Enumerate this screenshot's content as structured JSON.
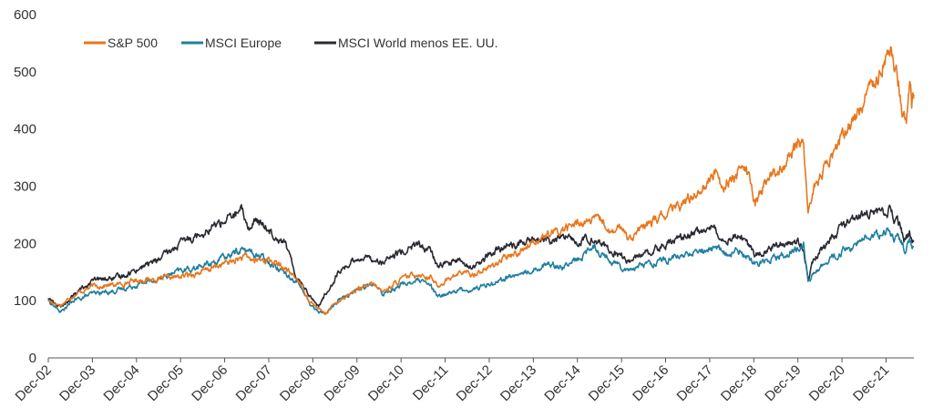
{
  "chart_data": {
    "type": "line",
    "title": "",
    "xlabel": "",
    "ylabel": "",
    "ylim": [
      0,
      600
    ],
    "yticks": [
      0,
      100,
      200,
      300,
      400,
      500,
      600
    ],
    "xlim": [
      2002.92,
      2022.55
    ],
    "xticks": [
      {
        "label": "Dec-02",
        "x": 2002.92
      },
      {
        "label": "Dec-03",
        "x": 2003.92
      },
      {
        "label": "Dec-04",
        "x": 2004.92
      },
      {
        "label": "Dec-05",
        "x": 2005.92
      },
      {
        "label": "Dec-06",
        "x": 2006.92
      },
      {
        "label": "Dec-07",
        "x": 2007.92
      },
      {
        "label": "Dec-08",
        "x": 2008.92
      },
      {
        "label": "Dec-09",
        "x": 2009.92
      },
      {
        "label": "Dec-10",
        "x": 2010.92
      },
      {
        "label": "Dec-11",
        "x": 2011.92
      },
      {
        "label": "Dec-12",
        "x": 2012.92
      },
      {
        "label": "Dec-13",
        "x": 2013.92
      },
      {
        "label": "Dec-14",
        "x": 2014.92
      },
      {
        "label": "Dec-15",
        "x": 2015.92
      },
      {
        "label": "Dec-16",
        "x": 2016.92
      },
      {
        "label": "Dec-17",
        "x": 2017.92
      },
      {
        "label": "Dec-18",
        "x": 2018.92
      },
      {
        "label": "Dec-19",
        "x": 2019.92
      },
      {
        "label": "Dec-20",
        "x": 2020.92
      },
      {
        "label": "Dec-21",
        "x": 2021.92
      }
    ],
    "grid": false,
    "legend_position": "top-left",
    "series": [
      {
        "name": "S&P 500",
        "color": "#e8761c",
        "points": [
          [
            2002.92,
            100
          ],
          [
            2003.2,
            92
          ],
          [
            2003.5,
            110
          ],
          [
            2003.92,
            125
          ],
          [
            2004.5,
            128
          ],
          [
            2004.92,
            136
          ],
          [
            2005.5,
            138
          ],
          [
            2005.92,
            142
          ],
          [
            2006.4,
            150
          ],
          [
            2006.92,
            165
          ],
          [
            2007.4,
            176
          ],
          [
            2007.6,
            170
          ],
          [
            2007.92,
            172
          ],
          [
            2008.3,
            155
          ],
          [
            2008.6,
            135
          ],
          [
            2008.85,
            100
          ],
          [
            2009.05,
            85
          ],
          [
            2009.2,
            78
          ],
          [
            2009.5,
            100
          ],
          [
            2009.92,
            120
          ],
          [
            2010.3,
            128
          ],
          [
            2010.5,
            115
          ],
          [
            2010.92,
            137
          ],
          [
            2011.3,
            148
          ],
          [
            2011.6,
            140
          ],
          [
            2011.75,
            125
          ],
          [
            2011.92,
            135
          ],
          [
            2012.3,
            150
          ],
          [
            2012.5,
            145
          ],
          [
            2012.92,
            158
          ],
          [
            2013.3,
            175
          ],
          [
            2013.6,
            185
          ],
          [
            2013.92,
            205
          ],
          [
            2014.3,
            215
          ],
          [
            2014.6,
            225
          ],
          [
            2014.92,
            235
          ],
          [
            2015.3,
            240
          ],
          [
            2015.5,
            238
          ],
          [
            2015.7,
            215
          ],
          [
            2015.92,
            230
          ],
          [
            2016.1,
            210
          ],
          [
            2016.5,
            232
          ],
          [
            2016.92,
            250
          ],
          [
            2017.4,
            275
          ],
          [
            2017.92,
            310
          ],
          [
            2018.1,
            330
          ],
          [
            2018.2,
            300
          ],
          [
            2018.5,
            320
          ],
          [
            2018.75,
            330
          ],
          [
            2018.95,
            270
          ],
          [
            2019.2,
            310
          ],
          [
            2019.5,
            330
          ],
          [
            2019.92,
            370
          ],
          [
            2020.05,
            380
          ],
          [
            2020.15,
            255
          ],
          [
            2020.3,
            300
          ],
          [
            2020.6,
            340
          ],
          [
            2020.92,
            385
          ],
          [
            2021.3,
            430
          ],
          [
            2021.6,
            480
          ],
          [
            2021.92,
            530
          ],
          [
            2022.0,
            545
          ],
          [
            2022.1,
            505
          ],
          [
            2022.2,
            480
          ],
          [
            2022.3,
            430
          ],
          [
            2022.38,
            415
          ],
          [
            2022.45,
            490
          ],
          [
            2022.5,
            445
          ],
          [
            2022.55,
            460
          ]
        ]
      },
      {
        "name": "MSCI Europe",
        "color": "#1f7fa0",
        "points": [
          [
            2002.92,
            100
          ],
          [
            2003.2,
            80
          ],
          [
            2003.5,
            100
          ],
          [
            2003.92,
            112
          ],
          [
            2004.5,
            118
          ],
          [
            2004.92,
            128
          ],
          [
            2005.5,
            140
          ],
          [
            2005.92,
            152
          ],
          [
            2006.4,
            160
          ],
          [
            2006.92,
            175
          ],
          [
            2007.3,
            190
          ],
          [
            2007.5,
            185
          ],
          [
            2007.92,
            170
          ],
          [
            2008.3,
            150
          ],
          [
            2008.6,
            130
          ],
          [
            2008.85,
            95
          ],
          [
            2009.05,
            80
          ],
          [
            2009.2,
            78
          ],
          [
            2009.5,
            100
          ],
          [
            2009.92,
            120
          ],
          [
            2010.3,
            128
          ],
          [
            2010.5,
            112
          ],
          [
            2010.92,
            128
          ],
          [
            2011.3,
            135
          ],
          [
            2011.6,
            125
          ],
          [
            2011.75,
            105
          ],
          [
            2011.92,
            112
          ],
          [
            2012.3,
            120
          ],
          [
            2012.5,
            118
          ],
          [
            2012.92,
            130
          ],
          [
            2013.3,
            140
          ],
          [
            2013.6,
            145
          ],
          [
            2013.92,
            155
          ],
          [
            2014.3,
            165
          ],
          [
            2014.6,
            160
          ],
          [
            2014.92,
            170
          ],
          [
            2015.3,
            195
          ],
          [
            2015.6,
            175
          ],
          [
            2015.92,
            160
          ],
          [
            2016.1,
            155
          ],
          [
            2016.5,
            165
          ],
          [
            2016.92,
            170
          ],
          [
            2017.4,
            180
          ],
          [
            2017.92,
            190
          ],
          [
            2018.1,
            195
          ],
          [
            2018.3,
            180
          ],
          [
            2018.6,
            185
          ],
          [
            2018.95,
            165
          ],
          [
            2019.3,
            175
          ],
          [
            2019.6,
            180
          ],
          [
            2019.92,
            190
          ],
          [
            2020.05,
            200
          ],
          [
            2020.15,
            130
          ],
          [
            2020.3,
            150
          ],
          [
            2020.6,
            170
          ],
          [
            2020.92,
            185
          ],
          [
            2021.3,
            200
          ],
          [
            2021.6,
            215
          ],
          [
            2021.92,
            218
          ],
          [
            2022.0,
            225
          ],
          [
            2022.1,
            205
          ],
          [
            2022.2,
            210
          ],
          [
            2022.35,
            188
          ],
          [
            2022.45,
            205
          ],
          [
            2022.55,
            195
          ]
        ]
      },
      {
        "name": "MSCI World menos EE. UU.",
        "color": "#2a2a33",
        "points": [
          [
            2002.92,
            105
          ],
          [
            2003.2,
            88
          ],
          [
            2003.5,
            110
          ],
          [
            2003.92,
            135
          ],
          [
            2004.5,
            140
          ],
          [
            2004.92,
            155
          ],
          [
            2005.5,
            175
          ],
          [
            2005.92,
            200
          ],
          [
            2006.4,
            220
          ],
          [
            2006.92,
            240
          ],
          [
            2007.3,
            255
          ],
          [
            2007.5,
            225
          ],
          [
            2007.6,
            240
          ],
          [
            2007.92,
            225
          ],
          [
            2008.3,
            200
          ],
          [
            2008.5,
            150
          ],
          [
            2008.85,
            110
          ],
          [
            2009.05,
            90
          ],
          [
            2009.2,
            110
          ],
          [
            2009.5,
            150
          ],
          [
            2009.92,
            175
          ],
          [
            2010.3,
            175
          ],
          [
            2010.5,
            165
          ],
          [
            2010.92,
            185
          ],
          [
            2011.3,
            198
          ],
          [
            2011.6,
            185
          ],
          [
            2011.75,
            160
          ],
          [
            2011.92,
            165
          ],
          [
            2012.3,
            170
          ],
          [
            2012.5,
            155
          ],
          [
            2012.92,
            180
          ],
          [
            2013.3,
            195
          ],
          [
            2013.6,
            200
          ],
          [
            2013.92,
            205
          ],
          [
            2014.3,
            205
          ],
          [
            2014.6,
            210
          ],
          [
            2014.92,
            205
          ],
          [
            2015.3,
            210
          ],
          [
            2015.6,
            190
          ],
          [
            2015.92,
            175
          ],
          [
            2016.1,
            170
          ],
          [
            2016.5,
            185
          ],
          [
            2016.92,
            200
          ],
          [
            2017.4,
            210
          ],
          [
            2017.92,
            232
          ],
          [
            2018.1,
            220
          ],
          [
            2018.3,
            210
          ],
          [
            2018.6,
            215
          ],
          [
            2018.95,
            180
          ],
          [
            2019.3,
            195
          ],
          [
            2019.6,
            200
          ],
          [
            2019.92,
            205
          ],
          [
            2020.05,
            195
          ],
          [
            2020.15,
            140
          ],
          [
            2020.3,
            175
          ],
          [
            2020.6,
            200
          ],
          [
            2020.92,
            230
          ],
          [
            2021.3,
            250
          ],
          [
            2021.6,
            255
          ],
          [
            2021.92,
            252
          ],
          [
            2022.0,
            260
          ],
          [
            2022.1,
            240
          ],
          [
            2022.2,
            235
          ],
          [
            2022.35,
            205
          ],
          [
            2022.45,
            215
          ],
          [
            2022.55,
            205
          ]
        ]
      }
    ]
  }
}
